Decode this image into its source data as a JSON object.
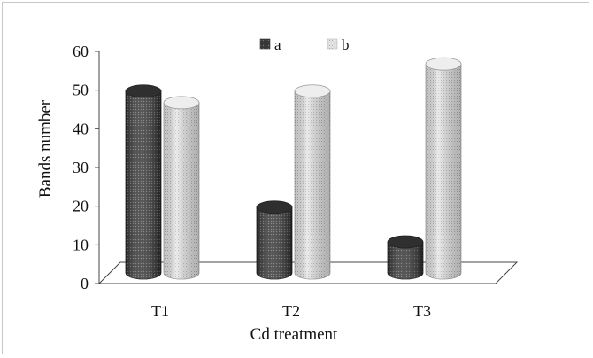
{
  "chart_data": {
    "type": "bar",
    "style": "3d-cylinder",
    "title": "",
    "xlabel": "Cd treatment",
    "ylabel": "Bands number",
    "categories": [
      "T1",
      "T2",
      "T3"
    ],
    "series": [
      {
        "name": "a",
        "values": [
          47,
          17,
          8
        ],
        "color": "#4d4d4d"
      },
      {
        "name": "b",
        "values": [
          44,
          47,
          54
        ],
        "color": "#d9d9d9"
      }
    ],
    "ylim": [
      0,
      60
    ],
    "yticks": [
      "0",
      "10",
      "20",
      "30",
      "40",
      "50",
      "60"
    ],
    "legend_position": "top-center",
    "grid": false
  }
}
